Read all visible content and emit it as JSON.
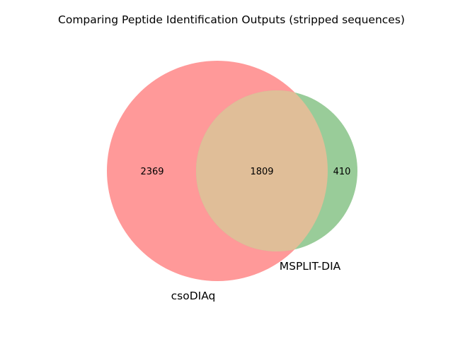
{
  "title": "Comparing Peptide Identification Outputs (stripped sequences)",
  "chart_data": {
    "type": "venn2",
    "title": "Comparing Peptide Identification Outputs (stripped sequences)",
    "sets": [
      {
        "name": "csoDIAq",
        "color": "#ff9999"
      },
      {
        "name": "MSPLIT-DIA",
        "color": "#99cc99"
      }
    ],
    "intersection_color": "#e0be98",
    "regions": {
      "csoDIAq_only": "2369",
      "both": "1809",
      "MSPLIT-DIA_only": "410"
    }
  }
}
